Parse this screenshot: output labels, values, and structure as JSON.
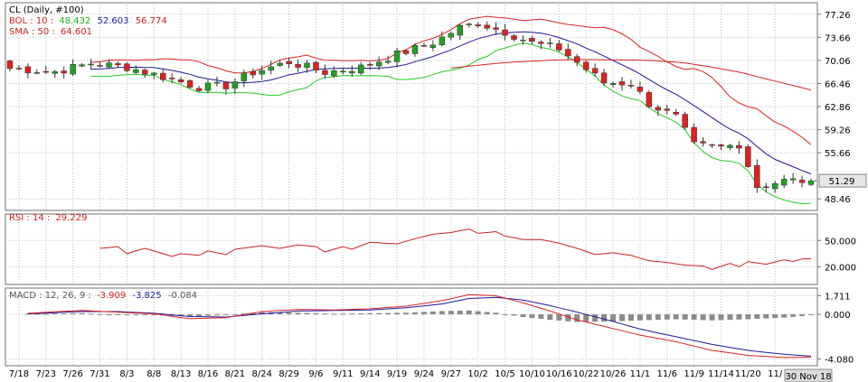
{
  "chart_data": {
    "type": "candlestick",
    "symbol_label": "CL  (Daily, #100)",
    "legends": {
      "bol": {
        "label": "BOL  : 10 :",
        "lower": "48.432",
        "mid": "52.603",
        "upper": "56.774"
      },
      "sma": {
        "label": "SMA : 50 :",
        "value": "64.601"
      },
      "rsi": {
        "label": "RSI  : 14 :",
        "value": "29.229"
      },
      "macd": {
        "label": "MACD  : 12, 26, 9 :",
        "macd": "-3.909",
        "signal": "-3.825",
        "hist": "-0.084"
      }
    },
    "colors": {
      "up": "#22a022",
      "down": "#dd2222",
      "bol_upper": "#dd2222",
      "bol_mid": "#1a1aa0",
      "bol_lower": "#22cc22",
      "sma": "#dd2222",
      "rsi": "#cc2222",
      "macd": "#1a1aa0",
      "signal": "#dd2222",
      "hist": "#8a8a8a",
      "grid": "#c0c0c0",
      "frame": "#707070",
      "text": "#000000"
    },
    "price_ticks": [
      "77.26",
      "73.66",
      "70.06",
      "66.46",
      "62.86",
      "59.26",
      "55.66",
      "48.46"
    ],
    "price_ylim": [
      46.66,
      79.06
    ],
    "last_price": "51.29",
    "rsi_ticks": [
      "50.000",
      "20.000"
    ],
    "rsi_ylim": [
      0,
      80
    ],
    "macd_ticks": [
      "1.711",
      "0.000",
      "-4.080"
    ],
    "macd_ylim": [
      -4.7,
      2.4
    ],
    "x_ticks": [
      {
        "i": 1,
        "label": "7/18"
      },
      {
        "i": 4,
        "label": "7/23"
      },
      {
        "i": 7,
        "label": "7/26"
      },
      {
        "i": 10,
        "label": "7/31"
      },
      {
        "i": 13,
        "label": "8/3"
      },
      {
        "i": 16,
        "label": "8/8"
      },
      {
        "i": 19,
        "label": "8/13"
      },
      {
        "i": 22,
        "label": "8/16"
      },
      {
        "i": 25,
        "label": "8/21"
      },
      {
        "i": 28,
        "label": "8/24"
      },
      {
        "i": 31,
        "label": "8/29"
      },
      {
        "i": 34,
        "label": "9/6"
      },
      {
        "i": 37,
        "label": "9/11"
      },
      {
        "i": 40,
        "label": "9/14"
      },
      {
        "i": 43,
        "label": "9/19"
      },
      {
        "i": 46,
        "label": "9/24"
      },
      {
        "i": 49,
        "label": "9/27"
      },
      {
        "i": 52,
        "label": "10/2"
      },
      {
        "i": 55,
        "label": "10/5"
      },
      {
        "i": 58,
        "label": "10/10"
      },
      {
        "i": 61,
        "label": "10/16"
      },
      {
        "i": 64,
        "label": "10/22"
      },
      {
        "i": 67,
        "label": "10/26"
      },
      {
        "i": 70,
        "label": "11/1"
      },
      {
        "i": 73,
        "label": "11/6"
      },
      {
        "i": 76,
        "label": "11/9"
      },
      {
        "i": 79,
        "label": "11/14"
      },
      {
        "i": 82,
        "label": "11/20"
      },
      {
        "i": 85,
        "label": "11/"
      }
    ],
    "date_badge": "30 Nov 18",
    "close_anchors": [
      [
        0,
        68.8
      ],
      [
        5,
        68.3
      ],
      [
        9,
        69.6
      ],
      [
        13,
        69.0
      ],
      [
        17,
        67.5
      ],
      [
        21,
        65.9
      ],
      [
        24,
        66.1
      ],
      [
        27,
        68.2
      ],
      [
        31,
        69.8
      ],
      [
        35,
        68.2
      ],
      [
        39,
        69.0
      ],
      [
        43,
        71.0
      ],
      [
        47,
        72.8
      ],
      [
        50,
        75.2
      ],
      [
        52,
        75.9
      ],
      [
        55,
        74.5
      ],
      [
        58,
        72.8
      ],
      [
        61,
        71.9
      ],
      [
        64,
        68.7
      ],
      [
        66,
        66.6
      ],
      [
        69,
        66.5
      ],
      [
        71,
        63.3
      ],
      [
        74,
        61.2
      ],
      [
        76,
        56.8
      ],
      [
        79,
        56.5
      ],
      [
        81,
        57.0
      ],
      [
        83,
        50.4
      ],
      [
        86,
        51.3
      ],
      [
        89,
        51.29
      ]
    ],
    "rsi_anchors": [
      [
        10,
        41
      ],
      [
        12,
        43
      ],
      [
        13,
        35
      ],
      [
        15,
        41
      ],
      [
        16,
        38
      ],
      [
        18,
        32
      ],
      [
        19,
        35
      ],
      [
        21,
        33
      ],
      [
        22,
        38
      ],
      [
        24,
        34
      ],
      [
        25,
        40
      ],
      [
        28,
        44
      ],
      [
        30,
        41
      ],
      [
        32,
        45
      ],
      [
        34,
        43
      ],
      [
        35,
        37
      ],
      [
        37,
        43
      ],
      [
        38,
        40
      ],
      [
        40,
        48
      ],
      [
        43,
        46
      ],
      [
        45,
        52
      ],
      [
        47,
        57
      ],
      [
        49,
        59
      ],
      [
        51,
        63
      ],
      [
        52,
        58
      ],
      [
        54,
        60
      ],
      [
        55,
        55
      ],
      [
        57,
        51
      ],
      [
        59,
        51
      ],
      [
        61,
        47
      ],
      [
        63,
        41
      ],
      [
        65,
        34
      ],
      [
        67,
        36
      ],
      [
        69,
        33
      ],
      [
        71,
        27
      ],
      [
        73,
        25
      ],
      [
        75,
        22
      ],
      [
        77,
        21
      ],
      [
        78,
        17
      ],
      [
        80,
        24
      ],
      [
        81,
        20
      ],
      [
        82,
        26
      ],
      [
        84,
        23
      ],
      [
        86,
        28
      ],
      [
        87,
        26
      ],
      [
        88,
        29
      ],
      [
        89,
        29.2
      ]
    ],
    "macd_anchors": [
      [
        2,
        0.1
      ],
      [
        8,
        0.35
      ],
      [
        12,
        0.2
      ],
      [
        16,
        0.05
      ],
      [
        20,
        -0.4
      ],
      [
        24,
        -0.3
      ],
      [
        28,
        0.25
      ],
      [
        32,
        0.45
      ],
      [
        36,
        0.4
      ],
      [
        40,
        0.5
      ],
      [
        44,
        0.75
      ],
      [
        48,
        1.25
      ],
      [
        51,
        1.8
      ],
      [
        54,
        1.7
      ],
      [
        57,
        1.05
      ],
      [
        60,
        0.3
      ],
      [
        63,
        -0.5
      ],
      [
        67,
        -1.3
      ],
      [
        70,
        -1.9
      ],
      [
        74,
        -2.5
      ],
      [
        78,
        -3.3
      ],
      [
        82,
        -3.75
      ],
      [
        86,
        -3.95
      ],
      [
        89,
        -3.909
      ]
    ],
    "signal_anchors": [
      [
        2,
        0.05
      ],
      [
        8,
        0.25
      ],
      [
        12,
        0.25
      ],
      [
        16,
        0.1
      ],
      [
        20,
        -0.2
      ],
      [
        24,
        -0.25
      ],
      [
        28,
        0.05
      ],
      [
        32,
        0.3
      ],
      [
        36,
        0.35
      ],
      [
        40,
        0.4
      ],
      [
        44,
        0.6
      ],
      [
        48,
        0.95
      ],
      [
        51,
        1.45
      ],
      [
        54,
        1.55
      ],
      [
        57,
        1.3
      ],
      [
        60,
        0.8
      ],
      [
        63,
        0.2
      ],
      [
        67,
        -0.65
      ],
      [
        70,
        -1.35
      ],
      [
        74,
        -2.05
      ],
      [
        78,
        -2.75
      ],
      [
        82,
        -3.3
      ],
      [
        86,
        -3.65
      ],
      [
        89,
        -3.825
      ]
    ]
  }
}
